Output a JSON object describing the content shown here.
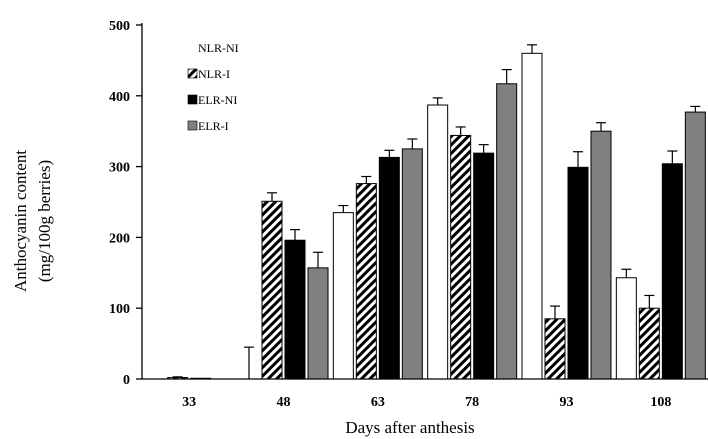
{
  "chart_data": {
    "type": "bar",
    "title": "",
    "xlabel": "Days after anthesis",
    "ylabel_line1": "Anthocyanin content",
    "ylabel_line2": "(mg/100g berries)",
    "categories": [
      "33",
      "48",
      "63",
      "78",
      "93",
      "108"
    ],
    "ylim": [
      0,
      500
    ],
    "yticks": [
      "0",
      "100",
      "200",
      "300",
      "400",
      "500"
    ],
    "grid": false,
    "legend_position": "top-left",
    "series": [
      {
        "name": "NLR-NI",
        "pattern": "white",
        "color": "#ffffff",
        "values": [
          0,
          0,
          235,
          387,
          460,
          143
        ],
        "errors": [
          0,
          45,
          10,
          10,
          12,
          12
        ]
      },
      {
        "name": "NLR-I",
        "pattern": "hatched",
        "color": "#000000",
        "values": [
          2,
          251,
          276,
          344,
          85,
          100
        ],
        "errors": [
          1,
          12,
          10,
          12,
          18,
          18
        ]
      },
      {
        "name": "ELR-NI",
        "pattern": "black",
        "color": "#000000",
        "values": [
          1,
          196,
          313,
          319,
          299,
          304
        ],
        "errors": [
          0,
          15,
          10,
          12,
          22,
          18
        ]
      },
      {
        "name": "ELR-I",
        "pattern": "gray",
        "color": "#808080",
        "values": [
          0,
          157,
          325,
          417,
          350,
          377
        ],
        "errors": [
          0,
          22,
          14,
          20,
          12,
          8
        ]
      }
    ]
  }
}
